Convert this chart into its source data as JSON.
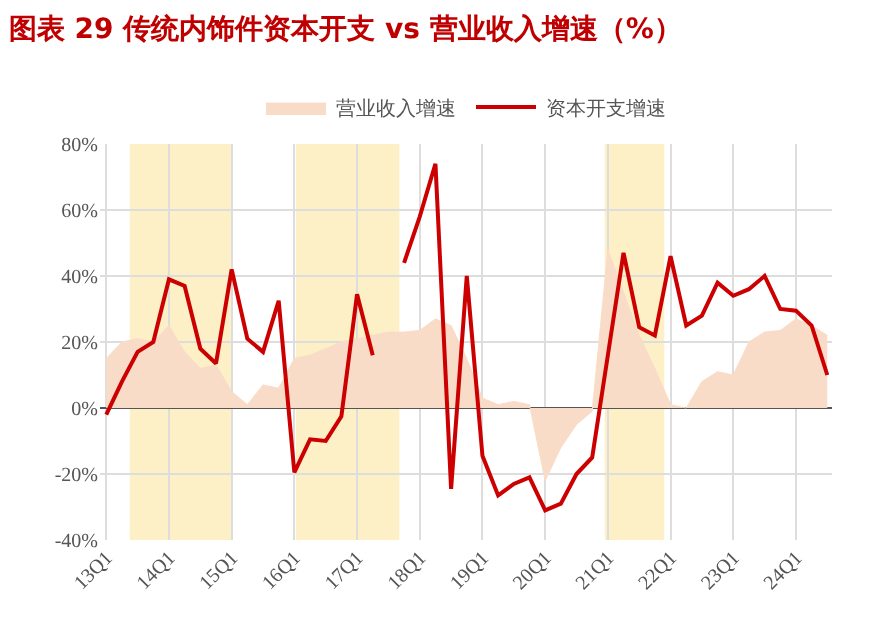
{
  "chart_data": {
    "type": "line",
    "title": "图表 29 传统内饰件资本开支 vs 营业收入增速（%）",
    "categories": [
      "13Q1",
      null,
      null,
      null,
      "14Q1",
      null,
      null,
      null,
      "15Q1",
      null,
      null,
      null,
      "16Q1",
      null,
      null,
      null,
      "17Q1",
      null,
      null,
      null,
      "18Q1",
      null,
      null,
      null,
      "19Q1",
      null,
      null,
      null,
      "20Q1",
      null,
      null,
      null,
      "21Q1",
      null,
      null,
      null,
      "22Q1",
      null,
      null,
      null,
      "23Q1",
      null,
      null,
      null,
      "24Q1",
      null,
      null
    ],
    "series": [
      {
        "name": "营业收入增速",
        "type": "area",
        "color": "#f9dcc8",
        "values": [
          15,
          20,
          21,
          20,
          25,
          17,
          12,
          13,
          5,
          1,
          7,
          6,
          15,
          16,
          18,
          20,
          21,
          22,
          23,
          23,
          23.5,
          27,
          25,
          15,
          3,
          1,
          2,
          1,
          -22,
          -12,
          -5,
          -1,
          48,
          35,
          22,
          12,
          1,
          0,
          8,
          11,
          10,
          20,
          23,
          23.5,
          27,
          25,
          22
        ]
      },
      {
        "name": "资本开支增速",
        "color": "#cc0000",
        "values": [
          -2,
          8,
          17,
          20,
          39,
          37,
          18,
          13.5,
          42,
          21,
          17,
          32.5,
          -19.5,
          -9.5,
          -10,
          -2.5,
          34.5,
          16,
          null,
          44,
          58,
          74,
          -24.5,
          40,
          -14.5,
          -26.5,
          -23,
          -21,
          -31,
          -29,
          -20,
          -15,
          16,
          47,
          24.5,
          22,
          46,
          25,
          28,
          38,
          34,
          36,
          40,
          30,
          29.5,
          25,
          10
        ]
      }
    ],
    "ylim": [
      -40,
      80
    ],
    "yticks": [
      {
        "value": -40,
        "label": "-40%"
      },
      {
        "value": -20,
        "label": "-20%"
      },
      {
        "value": 0,
        "label": "0%"
      },
      {
        "value": 20,
        "label": "20%"
      },
      {
        "value": 40,
        "label": "40%"
      },
      {
        "value": 60,
        "label": "60%"
      },
      {
        "value": 80,
        "label": "80%"
      }
    ],
    "grid": true,
    "legend": "top",
    "marker": "none",
    "line_style": "solid"
  }
}
